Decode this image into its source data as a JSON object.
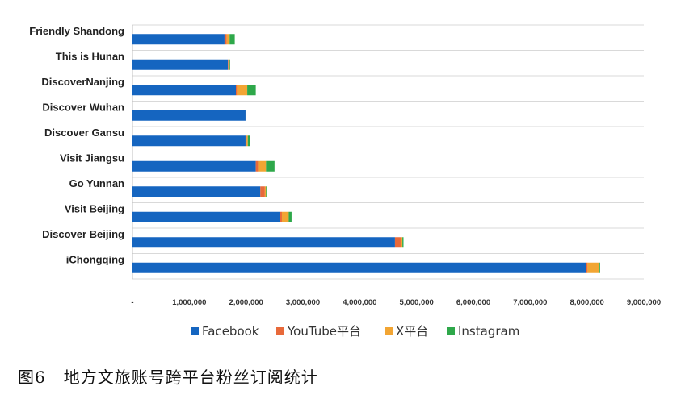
{
  "chart_data": {
    "type": "bar",
    "orientation": "horizontal",
    "stacked": true,
    "categories": [
      "Friendly Shandong",
      "This is Hunan",
      "DiscoverNanjing",
      "Discover Wuhan",
      "Discover Gansu",
      "Visit Jiangsu",
      "Go Yunnan",
      "Visit Beijing",
      "Discover Beijing",
      "iChongqing"
    ],
    "series": [
      {
        "name": "Facebook",
        "color": "#1565c0",
        "values": [
          1620000,
          1680000,
          1820000,
          1990000,
          1990000,
          2170000,
          2250000,
          2600000,
          4620000,
          7990000
        ]
      },
      {
        "name": "YouTube平台",
        "color": "#e8693a",
        "values": [
          40000,
          10000,
          20000,
          0,
          20000,
          40000,
          80000,
          30000,
          100000,
          20000
        ]
      },
      {
        "name": "X平台",
        "color": "#f2a533",
        "values": [
          50000,
          20000,
          180000,
          10000,
          20000,
          140000,
          20000,
          120000,
          30000,
          200000
        ]
      },
      {
        "name": "Instagram",
        "color": "#2ea84a",
        "values": [
          90000,
          10000,
          150000,
          0,
          40000,
          150000,
          20000,
          50000,
          20000,
          20000
        ]
      }
    ],
    "x_ticks": [
      "-",
      "1,000,000",
      "2,000,000",
      "3,000,000",
      "4,000,000",
      "5,000,000",
      "6,000,000",
      "7,000,000",
      "8,000,000",
      "9,000,000"
    ],
    "xlim": [
      0,
      9000000
    ],
    "grid": true,
    "legend": "bottom"
  },
  "caption": "图6   地方文旅账号跨平台粉丝订阅统计"
}
